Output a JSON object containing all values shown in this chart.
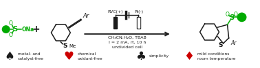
{
  "bg": "#ffffff",
  "green": "#00aa00",
  "black": "#1a1a1a",
  "red": "#cc0000",
  "gray": "#555555",
  "legend": [
    {
      "sym": "♠",
      "sym_color": "#1a1a1a",
      "text": "metal- and\ncatalyst-free"
    },
    {
      "sym": "♥",
      "sym_color": "#cc0000",
      "text": "chemical\noxidant-free"
    },
    {
      "sym": "♣",
      "sym_color": "#1a1a1a",
      "text": "simplicity"
    },
    {
      "sym": "♦",
      "sym_color": "#cc0000",
      "text": "mild conditions\nroom temperature"
    }
  ],
  "cond1": "CH₃CN:H₂O, TBAB",
  "cond2": "I = 2 mA, rt, 10 h",
  "cond3": "undivided cell",
  "rvc": "RVC(+)",
  "pt": "Pt(-)"
}
